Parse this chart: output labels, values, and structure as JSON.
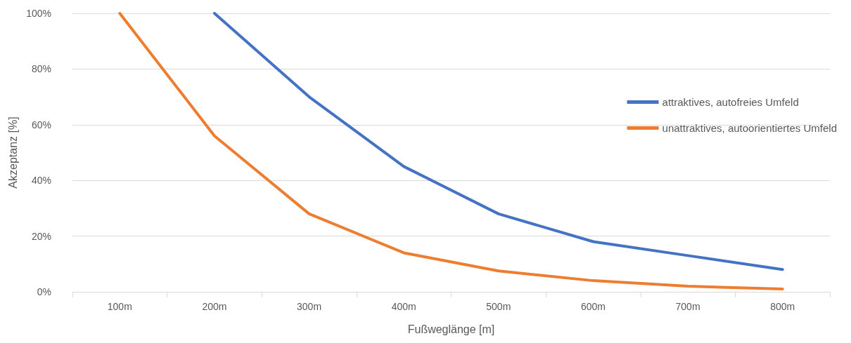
{
  "chart_data": {
    "type": "line",
    "xlabel": "Fußweglänge [m]",
    "ylabel": "Akzeptanz [%]",
    "categories": [
      "100m",
      "200m",
      "300m",
      "400m",
      "500m",
      "600m",
      "700m",
      "800m"
    ],
    "series": [
      {
        "name": "attraktives, autofreies Umfeld",
        "color": "#4472c4",
        "values": [
          null,
          100,
          70,
          45,
          28,
          18,
          13,
          8
        ]
      },
      {
        "name": "unattraktives, autoorientiertes Umfeld",
        "color": "#ed7d31",
        "values": [
          100,
          56,
          28,
          14,
          7.5,
          4,
          2,
          1
        ]
      }
    ],
    "ylim": [
      0,
      100
    ],
    "yticks": [
      {
        "value": 0,
        "label": "0%"
      },
      {
        "value": 20,
        "label": "20%"
      },
      {
        "value": 40,
        "label": "40%"
      },
      {
        "value": 60,
        "label": "60%"
      },
      {
        "value": 80,
        "label": "80%"
      },
      {
        "value": 100,
        "label": "100%"
      }
    ],
    "grid": "y",
    "legend": "right",
    "marker": "none",
    "line_style": "solid"
  }
}
